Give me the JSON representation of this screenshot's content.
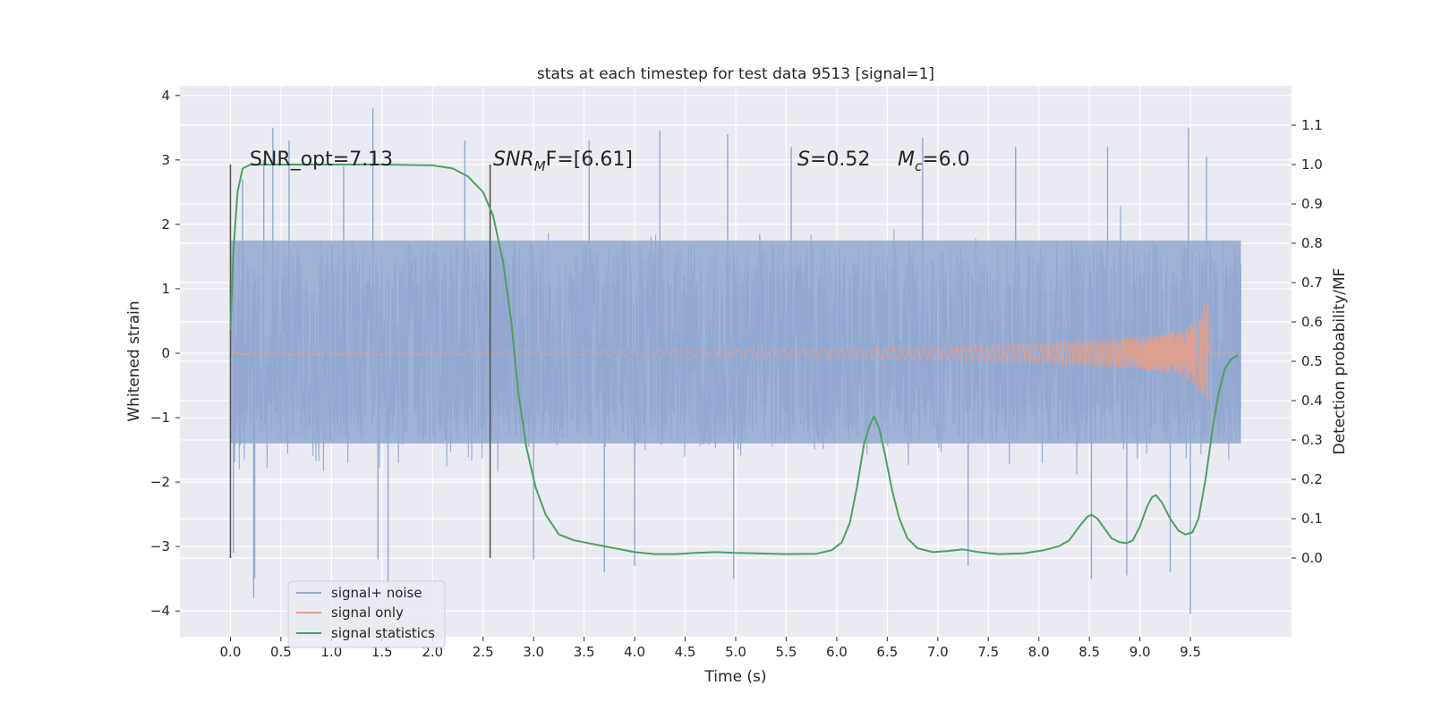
{
  "chart_data": {
    "type": "line",
    "title": "stats at each timestep for test data 9513 [signal=1]",
    "xlabel": "Time (s)",
    "ylabel": "Whitened strain",
    "ylabel_right": "Detection probability/MF",
    "xlim": [
      -0.5,
      10.5
    ],
    "ylim": [
      -4.4,
      4.15
    ],
    "ylim_right": [
      -0.2,
      1.2
    ],
    "x_ticks": [
      "0.0",
      "0.5",
      "1.0",
      "1.5",
      "2.0",
      "2.5",
      "3.0",
      "3.5",
      "4.0",
      "4.5",
      "5.0",
      "5.5",
      "6.0",
      "6.5",
      "7.0",
      "7.5",
      "8.0",
      "8.5",
      "9.0",
      "9.5"
    ],
    "y_ticks": [
      "−4",
      "−3",
      "−2",
      "−1",
      "0",
      "1",
      "2",
      "3",
      "4"
    ],
    "y_ticks_right": [
      "0.0",
      "0.1",
      "0.2",
      "0.3",
      "0.4",
      "0.5",
      "0.6",
      "0.7",
      "0.8",
      "0.9",
      "1.0",
      "1.1"
    ],
    "grid": true,
    "legend_position": "lower-left",
    "annotations": {
      "snr_opt": "SNR_opt=7.13",
      "snr_mf_base": "SNR",
      "snr_mf_sub": "M",
      "snr_mf_rest": "F=[6.61]",
      "s_label": "S",
      "s_value": "=0.52",
      "mc_base": "M",
      "mc_sub": "c",
      "mc_value": "=6.0"
    },
    "vertical_markers": [
      0.0,
      2.57
    ],
    "series": [
      {
        "name": "signal+ noise",
        "color": "#92a8d1",
        "axis": "left",
        "x_range": [
          0.0,
          10.0
        ],
        "typical_envelope": [
          -1.4,
          1.75
        ],
        "extreme_envelope": [
          -3.8,
          3.8
        ],
        "peaks": [
          {
            "x": 0.12,
            "y": 2.7
          },
          {
            "x": 0.33,
            "y": 3.0
          },
          {
            "x": 0.42,
            "y": 3.5
          },
          {
            "x": 0.58,
            "y": 3.3
          },
          {
            "x": 1.12,
            "y": 2.9
          },
          {
            "x": 1.41,
            "y": 3.8
          },
          {
            "x": 2.32,
            "y": 3.3
          },
          {
            "x": 3.55,
            "y": 3.3
          },
          {
            "x": 4.25,
            "y": 3.45
          },
          {
            "x": 4.92,
            "y": 3.4
          },
          {
            "x": 5.55,
            "y": 3.2
          },
          {
            "x": 6.85,
            "y": 3.35
          },
          {
            "x": 7.77,
            "y": 3.2
          },
          {
            "x": 8.68,
            "y": 3.2
          },
          {
            "x": 9.48,
            "y": 3.5
          },
          {
            "x": 9.66,
            "y": 3.05
          }
        ],
        "troughs": [
          {
            "x": 0.03,
            "y": -3.1
          },
          {
            "x": 0.23,
            "y": -3.8
          },
          {
            "x": 0.24,
            "y": -3.5
          },
          {
            "x": 1.56,
            "y": -3.6
          },
          {
            "x": 1.46,
            "y": -3.2
          },
          {
            "x": 3.0,
            "y": -3.2
          },
          {
            "x": 3.7,
            "y": -3.4
          },
          {
            "x": 4.0,
            "y": -3.3
          },
          {
            "x": 4.98,
            "y": -3.5
          },
          {
            "x": 7.3,
            "y": -3.3
          },
          {
            "x": 8.52,
            "y": -3.5
          },
          {
            "x": 8.87,
            "y": -3.45
          },
          {
            "x": 9.3,
            "y": -3.4
          },
          {
            "x": 9.5,
            "y": -4.05
          }
        ]
      },
      {
        "name": "signal only",
        "color": "#e39f8a",
        "axis": "left",
        "x_range": [
          0.0,
          9.68
        ],
        "envelope": [
          [
            0.0,
            0.02
          ],
          [
            4.0,
            0.04
          ],
          [
            5.0,
            0.06
          ],
          [
            6.0,
            0.08
          ],
          [
            7.0,
            0.1
          ],
          [
            8.0,
            0.15
          ],
          [
            9.0,
            0.25
          ],
          [
            9.4,
            0.35
          ],
          [
            9.55,
            0.5
          ],
          [
            9.62,
            0.7
          ],
          [
            9.66,
            0.78
          ]
        ]
      },
      {
        "name": "signal statistics",
        "color": "#4aa25f",
        "axis": "right",
        "points": [
          [
            0.0,
            0.58
          ],
          [
            0.03,
            0.78
          ],
          [
            0.07,
            0.93
          ],
          [
            0.12,
            0.99
          ],
          [
            0.2,
            1.0
          ],
          [
            0.5,
            1.0
          ],
          [
            1.0,
            1.0
          ],
          [
            1.5,
            1.0
          ],
          [
            2.0,
            0.998
          ],
          [
            2.2,
            0.99
          ],
          [
            2.35,
            0.97
          ],
          [
            2.5,
            0.93
          ],
          [
            2.6,
            0.87
          ],
          [
            2.7,
            0.75
          ],
          [
            2.78,
            0.6
          ],
          [
            2.85,
            0.42
          ],
          [
            2.93,
            0.28
          ],
          [
            3.02,
            0.18
          ],
          [
            3.12,
            0.11
          ],
          [
            3.25,
            0.06
          ],
          [
            3.4,
            0.045
          ],
          [
            3.6,
            0.035
          ],
          [
            3.8,
            0.025
          ],
          [
            4.0,
            0.015
          ],
          [
            4.2,
            0.01
          ],
          [
            4.4,
            0.01
          ],
          [
            4.6,
            0.013
          ],
          [
            4.8,
            0.015
          ],
          [
            5.0,
            0.013
          ],
          [
            5.2,
            0.012
          ],
          [
            5.5,
            0.01
          ],
          [
            5.8,
            0.011
          ],
          [
            5.95,
            0.02
          ],
          [
            6.05,
            0.04
          ],
          [
            6.13,
            0.09
          ],
          [
            6.2,
            0.18
          ],
          [
            6.27,
            0.29
          ],
          [
            6.33,
            0.34
          ],
          [
            6.37,
            0.36
          ],
          [
            6.42,
            0.33
          ],
          [
            6.48,
            0.26
          ],
          [
            6.55,
            0.17
          ],
          [
            6.62,
            0.1
          ],
          [
            6.7,
            0.05
          ],
          [
            6.8,
            0.025
          ],
          [
            6.95,
            0.015
          ],
          [
            7.1,
            0.018
          ],
          [
            7.25,
            0.022
          ],
          [
            7.4,
            0.015
          ],
          [
            7.6,
            0.01
          ],
          [
            7.85,
            0.012
          ],
          [
            8.05,
            0.02
          ],
          [
            8.2,
            0.03
          ],
          [
            8.3,
            0.045
          ],
          [
            8.4,
            0.08
          ],
          [
            8.48,
            0.105
          ],
          [
            8.52,
            0.11
          ],
          [
            8.58,
            0.1
          ],
          [
            8.65,
            0.075
          ],
          [
            8.72,
            0.05
          ],
          [
            8.8,
            0.04
          ],
          [
            8.87,
            0.038
          ],
          [
            8.93,
            0.045
          ],
          [
            9.0,
            0.08
          ],
          [
            9.07,
            0.13
          ],
          [
            9.12,
            0.155
          ],
          [
            9.16,
            0.16
          ],
          [
            9.22,
            0.14
          ],
          [
            9.3,
            0.1
          ],
          [
            9.38,
            0.07
          ],
          [
            9.45,
            0.06
          ],
          [
            9.52,
            0.065
          ],
          [
            9.58,
            0.1
          ],
          [
            9.65,
            0.2
          ],
          [
            9.72,
            0.33
          ],
          [
            9.78,
            0.42
          ],
          [
            9.84,
            0.48
          ],
          [
            9.9,
            0.505
          ],
          [
            9.97,
            0.515
          ]
        ]
      }
    ]
  }
}
